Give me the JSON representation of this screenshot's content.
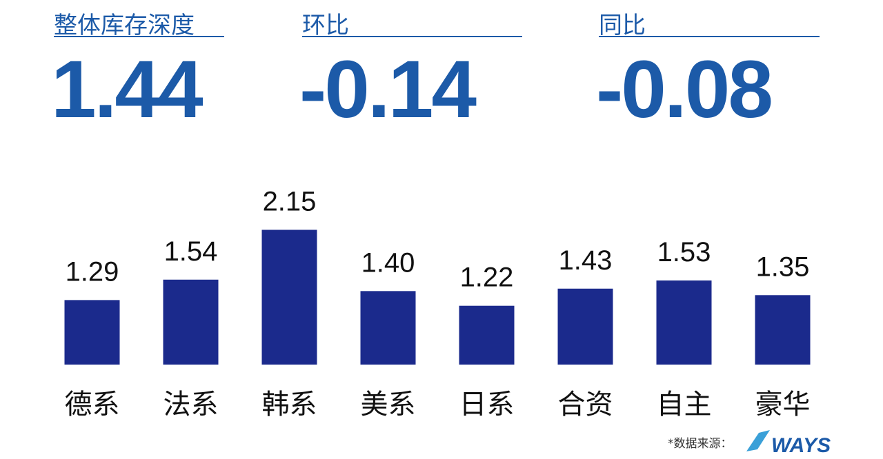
{
  "kpis": [
    {
      "label": "整体库存深度",
      "value": 1.44
    },
    {
      "label": "环比",
      "value": -0.14
    },
    {
      "label": "同比",
      "value": -0.08
    }
  ],
  "chart_data": {
    "type": "bar",
    "categories": [
      "德系",
      "法系",
      "韩系",
      "美系",
      "日系",
      "合资",
      "自主",
      "豪华"
    ],
    "values": [
      1.29,
      1.54,
      2.15,
      1.4,
      1.22,
      1.43,
      1.53,
      1.35
    ],
    "value_labels": [
      "1.29",
      "1.54",
      "2.15",
      "1.40",
      "1.22",
      "1.43",
      "1.53",
      "1.35"
    ],
    "color": "#1b2a8c",
    "ylim": [
      0.5,
      2.5
    ]
  },
  "source": {
    "label": "*数据来源：",
    "logo": "WAYS"
  }
}
